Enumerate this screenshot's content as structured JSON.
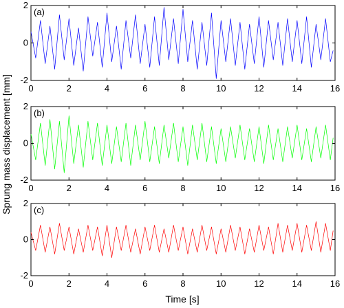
{
  "chart_data": {
    "type": "line",
    "xlabel": "Time [s]",
    "ylabel": "Sprung mass displacement [mm]",
    "xlim": [
      0,
      16
    ],
    "x_ticks": [
      0,
      2,
      4,
      6,
      8,
      10,
      12,
      14,
      16
    ],
    "panels": [
      {
        "label": "(a)",
        "ylim": [
          -2,
          2
        ],
        "y_ticks": [
          -2,
          0,
          2
        ],
        "color": "#0000ff",
        "series": [
          {
            "x": [
              0,
              0.25,
              0.5,
              0.75,
              1,
              1.25,
              1.5,
              1.75,
              2,
              2.25,
              2.5,
              2.75,
              3,
              3.25,
              3.5,
              3.75,
              4,
              4.25,
              4.5,
              4.75,
              5,
              5.25,
              5.5,
              5.75,
              6,
              6.25,
              6.5,
              6.75,
              7,
              7.25,
              7.5,
              7.75,
              8,
              8.25,
              8.5,
              8.75,
              9,
              9.25,
              9.5,
              9.75,
              10,
              10.25,
              10.5,
              10.75,
              11,
              11.25,
              11.5,
              11.75,
              12,
              12.25,
              12.5,
              12.75,
              13,
              13.25,
              13.5,
              13.75,
              14,
              14.25,
              14.5,
              14.75,
              15,
              15.25,
              15.5,
              15.75,
              15.9
            ],
            "y": [
              0.6,
              -0.8,
              1.2,
              -1.1,
              0.9,
              -1.4,
              1.5,
              -0.9,
              1.3,
              -1.2,
              0.8,
              -1.5,
              1.4,
              -0.7,
              1.1,
              -1.3,
              1.6,
              -1.0,
              0.9,
              -1.4,
              1.2,
              -0.8,
              1.5,
              -1.1,
              1.0,
              -1.3,
              1.4,
              -1.2,
              1.9,
              -0.9,
              1.3,
              -1.1,
              1.8,
              -1.0,
              1.2,
              -1.4,
              1.1,
              -1.2,
              1.6,
              -1.9,
              1.2,
              -1.0,
              1.3,
              -1.2,
              1.1,
              -1.4,
              1.0,
              -1.1,
              1.4,
              -1.3,
              1.2,
              -0.9,
              1.1,
              -1.2,
              1.3,
              -1.0,
              1.2,
              -1.1,
              1.4,
              -1.3,
              1.0,
              -0.9,
              1.3,
              -1.0,
              -0.4
            ]
          }
        ]
      },
      {
        "label": "(b)",
        "ylim": [
          -2,
          2
        ],
        "y_ticks": [
          -2,
          0,
          2
        ],
        "color": "#00ff00",
        "series": [
          {
            "x": [
              0,
              0.25,
              0.5,
              0.75,
              1,
              1.25,
              1.5,
              1.75,
              2,
              2.25,
              2.5,
              2.75,
              3,
              3.25,
              3.5,
              3.75,
              4,
              4.25,
              4.5,
              4.75,
              5,
              5.25,
              5.5,
              5.75,
              6,
              6.25,
              6.5,
              6.75,
              7,
              7.25,
              7.5,
              7.75,
              8,
              8.25,
              8.5,
              8.75,
              9,
              9.25,
              9.5,
              9.75,
              10,
              10.25,
              10.5,
              10.75,
              11,
              11.25,
              11.5,
              11.75,
              12,
              12.25,
              12.5,
              12.75,
              13,
              13.25,
              13.5,
              13.75,
              14,
              14.25,
              14.5,
              14.75,
              15,
              15.25,
              15.5,
              15.75,
              15.9
            ],
            "y": [
              0.5,
              -0.9,
              1.1,
              -1.2,
              1.3,
              -1.4,
              1.2,
              -1.6,
              1.5,
              -1.1,
              1.0,
              -1.3,
              1.2,
              -0.9,
              1.1,
              -1.2,
              1.0,
              -1.1,
              0.9,
              -1.0,
              1.1,
              -1.2,
              1.0,
              -0.9,
              1.2,
              -1.0,
              0.9,
              -1.1,
              1.0,
              -0.8,
              1.1,
              -1.0,
              0.9,
              -1.2,
              1.0,
              -0.9,
              1.1,
              -1.0,
              0.9,
              -1.1,
              0.8,
              -1.0,
              0.9,
              -0.8,
              1.0,
              -0.9,
              0.8,
              -1.0,
              0.9,
              -1.1,
              1.0,
              -0.9,
              0.8,
              -1.0,
              0.9,
              -0.8,
              1.0,
              -0.9,
              0.8,
              -1.0,
              0.9,
              -0.8,
              1.0,
              -0.9,
              0.3
            ]
          }
        ]
      },
      {
        "label": "(c)",
        "ylim": [
          -2,
          2
        ],
        "y_ticks": [
          -2,
          0,
          2
        ],
        "color": "#ff0000",
        "series": [
          {
            "x": [
              0,
              0.25,
              0.5,
              0.75,
              1,
              1.25,
              1.5,
              1.75,
              2,
              2.25,
              2.5,
              2.75,
              3,
              3.25,
              3.5,
              3.75,
              4,
              4.25,
              4.5,
              4.75,
              5,
              5.25,
              5.5,
              5.75,
              6,
              6.25,
              6.5,
              6.75,
              7,
              7.25,
              7.5,
              7.75,
              8,
              8.25,
              8.5,
              8.75,
              9,
              9.25,
              9.5,
              9.75,
              10,
              10.25,
              10.5,
              10.75,
              11,
              11.25,
              11.5,
              11.75,
              12,
              12.25,
              12.5,
              12.75,
              13,
              13.25,
              13.5,
              13.75,
              14,
              14.25,
              14.5,
              14.75,
              15,
              15.25,
              15.5,
              15.75,
              15.9
            ],
            "y": [
              0.4,
              -0.6,
              0.8,
              -0.7,
              0.7,
              -0.8,
              0.9,
              -0.6,
              0.7,
              -0.8,
              0.6,
              -0.7,
              0.8,
              -0.6,
              0.7,
              -0.9,
              0.8,
              -1.0,
              0.7,
              -0.6,
              0.8,
              -0.7,
              0.6,
              -0.8,
              0.7,
              -0.6,
              0.8,
              -0.7,
              0.6,
              -0.7,
              0.8,
              -0.6,
              0.7,
              -0.8,
              0.6,
              -0.7,
              0.8,
              -0.6,
              0.7,
              -0.8,
              0.6,
              -0.7,
              0.8,
              -0.6,
              0.7,
              -0.8,
              0.6,
              -0.7,
              0.8,
              -0.6,
              0.7,
              -0.8,
              0.9,
              -0.7,
              0.8,
              -0.6,
              0.9,
              -0.7,
              0.8,
              -0.6,
              1.0,
              -0.7,
              0.9,
              -0.6,
              0.5
            ]
          }
        ]
      }
    ]
  }
}
